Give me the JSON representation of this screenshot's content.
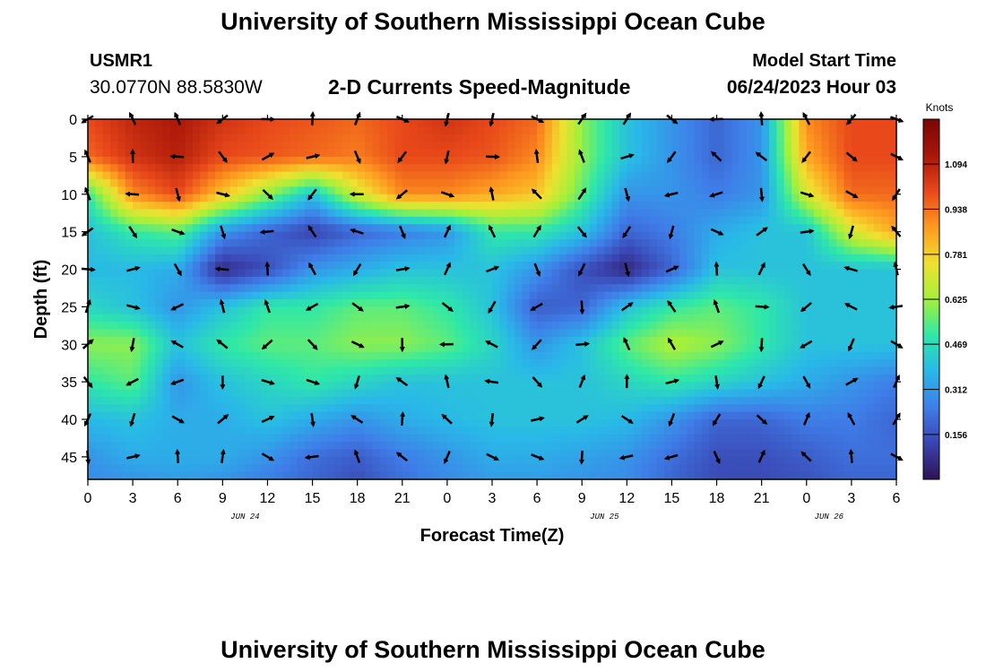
{
  "header": {
    "title": "University of Southern Mississippi Ocean Cube",
    "station_id": "USMR1",
    "station_coords": "30.0770N  88.5830W",
    "plot_title": "2-D Currents Speed-Magnitude",
    "model_start_label": "Model Start Time",
    "model_start_value": "06/24/2023 Hour 03"
  },
  "footer": {
    "title": "University of Southern Mississippi Ocean Cube"
  },
  "chart_data": {
    "type": "heatmap",
    "xlabel": "Forecast Time(Z)",
    "ylabel": "Depth (ft)",
    "x_ticks": [
      "0",
      "3",
      "6",
      "9",
      "12",
      "15",
      "18",
      "21",
      "0",
      "3",
      "6",
      "9",
      "12",
      "15",
      "18",
      "21",
      "0",
      "3",
      "6"
    ],
    "x_range_hours": [
      0,
      54
    ],
    "date_labels": [
      {
        "hour": 10.5,
        "label": "JUN 24"
      },
      {
        "hour": 34.5,
        "label": "JUN 25"
      },
      {
        "hour": 49.5,
        "label": "JUN 26"
      }
    ],
    "y_ticks": [
      0,
      5,
      10,
      15,
      20,
      25,
      30,
      35,
      40,
      45
    ],
    "y_range": [
      0,
      48
    ],
    "y_inverted": true,
    "colorbar": {
      "units": "Knots",
      "tick_labels": [
        "1.094",
        "0.938",
        "0.781",
        "0.625",
        "0.469",
        "0.312",
        "0.156"
      ],
      "ticks": [
        1.094,
        0.938,
        0.781,
        0.625,
        0.469,
        0.312,
        0.156
      ],
      "range": [
        0,
        1.25
      ],
      "colormap": [
        "#2e1254",
        "#3a44b0",
        "#3f7de8",
        "#29b8e8",
        "#2ee8a8",
        "#a4f03a",
        "#f0e030",
        "#ff9a20",
        "#e8481a",
        "#a81608",
        "#7a0606"
      ]
    },
    "speed_hours": [
      0,
      3,
      6,
      9,
      12,
      15,
      18,
      21,
      24,
      27,
      30,
      33,
      36,
      39,
      42,
      45,
      48,
      51,
      54
    ],
    "speed_depths": [
      0,
      5,
      10,
      15,
      20,
      25,
      30,
      35,
      40,
      45,
      48
    ],
    "speed_knots": [
      [
        1.0,
        1.08,
        1.12,
        1.05,
        1.0,
        0.98,
        0.95,
        1.0,
        1.05,
        1.0,
        0.95,
        0.6,
        0.4,
        0.3,
        0.2,
        0.3,
        0.9,
        1.0,
        1.0
      ],
      [
        0.95,
        1.05,
        1.1,
        1.0,
        0.98,
        0.95,
        0.92,
        1.0,
        1.0,
        0.98,
        0.9,
        0.6,
        0.4,
        0.3,
        0.2,
        0.3,
        0.85,
        1.0,
        1.0
      ],
      [
        0.5,
        0.9,
        1.0,
        0.8,
        0.6,
        0.4,
        0.7,
        0.9,
        0.9,
        0.85,
        0.8,
        0.55,
        0.3,
        0.3,
        0.25,
        0.3,
        0.7,
        0.95,
        0.95
      ],
      [
        0.4,
        0.5,
        0.55,
        0.3,
        0.2,
        0.12,
        0.2,
        0.25,
        0.3,
        0.5,
        0.5,
        0.4,
        0.2,
        0.25,
        0.35,
        0.4,
        0.4,
        0.7,
        0.85
      ],
      [
        0.38,
        0.38,
        0.35,
        0.06,
        0.15,
        0.3,
        0.35,
        0.4,
        0.4,
        0.4,
        0.3,
        0.15,
        0.05,
        0.2,
        0.4,
        0.4,
        0.4,
        0.4,
        0.4
      ],
      [
        0.45,
        0.4,
        0.3,
        0.4,
        0.5,
        0.5,
        0.55,
        0.55,
        0.5,
        0.4,
        0.18,
        0.2,
        0.4,
        0.5,
        0.55,
        0.5,
        0.4,
        0.4,
        0.4
      ],
      [
        0.6,
        0.6,
        0.4,
        0.5,
        0.55,
        0.55,
        0.6,
        0.6,
        0.55,
        0.45,
        0.3,
        0.4,
        0.55,
        0.65,
        0.6,
        0.5,
        0.4,
        0.4,
        0.4
      ],
      [
        0.5,
        0.55,
        0.3,
        0.4,
        0.45,
        0.5,
        0.45,
        0.4,
        0.4,
        0.4,
        0.4,
        0.4,
        0.45,
        0.5,
        0.45,
        0.4,
        0.35,
        0.3,
        0.25
      ],
      [
        0.38,
        0.4,
        0.35,
        0.35,
        0.4,
        0.35,
        0.3,
        0.35,
        0.38,
        0.4,
        0.4,
        0.4,
        0.38,
        0.3,
        0.2,
        0.2,
        0.25,
        0.25,
        0.2
      ],
      [
        0.3,
        0.35,
        0.35,
        0.35,
        0.3,
        0.22,
        0.18,
        0.25,
        0.3,
        0.35,
        0.35,
        0.33,
        0.3,
        0.22,
        0.15,
        0.15,
        0.18,
        0.22,
        0.22
      ],
      [
        0.28,
        0.3,
        0.32,
        0.3,
        0.25,
        0.2,
        0.15,
        0.22,
        0.28,
        0.32,
        0.32,
        0.3,
        0.28,
        0.2,
        0.14,
        0.14,
        0.16,
        0.2,
        0.2
      ]
    ]
  }
}
